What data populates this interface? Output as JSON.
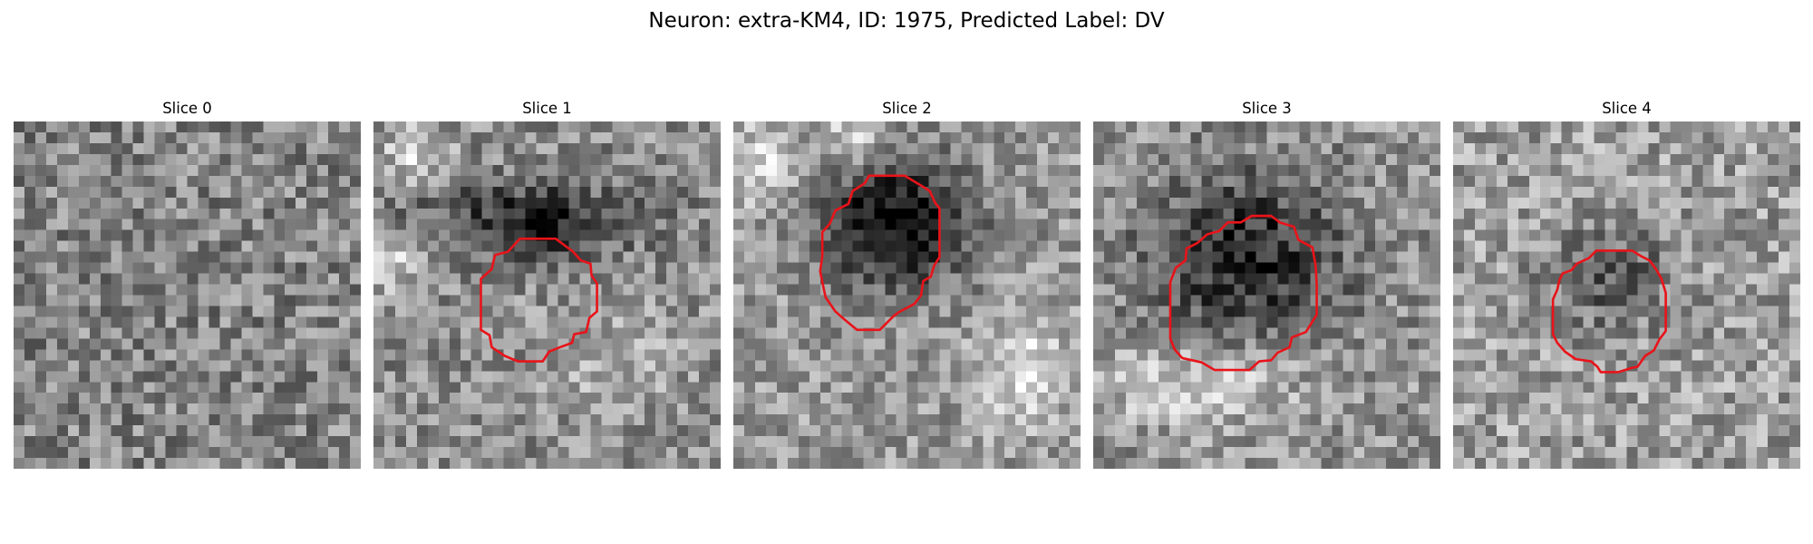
{
  "figure": {
    "title": "Neuron: extra-KM4, ID: 1975, Predicted Label: DV"
  },
  "colors": {
    "contour": "#e8141a",
    "background": "#ffffff",
    "colormap": "grayscale"
  },
  "slices": [
    {
      "title": "Slice 0"
    },
    {
      "title": "Slice 1"
    },
    {
      "title": "Slice 2"
    },
    {
      "title": "Slice 3"
    },
    {
      "title": "Slice 4"
    }
  ]
}
